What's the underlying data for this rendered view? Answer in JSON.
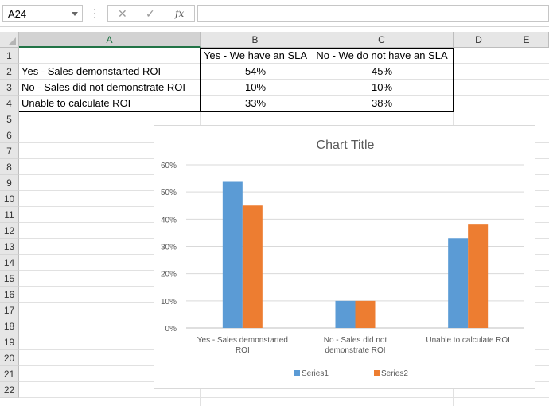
{
  "formula_bar": {
    "name_box": "A24",
    "fx_label": "fx",
    "cancel_glyph": "✕",
    "enter_glyph": "✓",
    "formula": ""
  },
  "columns": [
    "A",
    "B",
    "C",
    "D",
    "E"
  ],
  "rows": [
    "1",
    "2",
    "3",
    "4",
    "5",
    "6",
    "7",
    "8",
    "9",
    "10",
    "11",
    "12",
    "13",
    "14",
    "15",
    "16",
    "17",
    "18",
    "19",
    "20",
    "21",
    "22"
  ],
  "table": {
    "header": [
      "",
      "Yes - We have an SLA",
      "No - We do not have an SLA"
    ],
    "rows": [
      [
        "Yes - Sales demonstarted ROI",
        "54%",
        "45%"
      ],
      [
        "No - Sales did not demonstrate ROI",
        "10%",
        "10%"
      ],
      [
        "Unable to calculate ROI",
        "33%",
        "38%"
      ]
    ]
  },
  "chart_data": {
    "type": "bar",
    "title": "Chart Title",
    "categories": [
      "Yes - Sales demonstarted ROI",
      "No - Sales did not demonstrate ROI",
      "Unable to calculate ROI"
    ],
    "category_lines": [
      [
        "Yes - Sales demonstarted",
        "ROI"
      ],
      [
        "No - Sales did not",
        "demonstrate ROI"
      ],
      [
        "Unable to calculate ROI"
      ]
    ],
    "series": [
      {
        "name": "Series1",
        "values": [
          54,
          10,
          33
        ],
        "color": "#5b9bd5"
      },
      {
        "name": "Series2",
        "values": [
          45,
          10,
          38
        ],
        "color": "#ed7d31"
      }
    ],
    "yticks": [
      "0%",
      "10%",
      "20%",
      "30%",
      "40%",
      "50%",
      "60%"
    ],
    "ylim": [
      0,
      60
    ],
    "grid": true,
    "legend_position": "bottom"
  }
}
